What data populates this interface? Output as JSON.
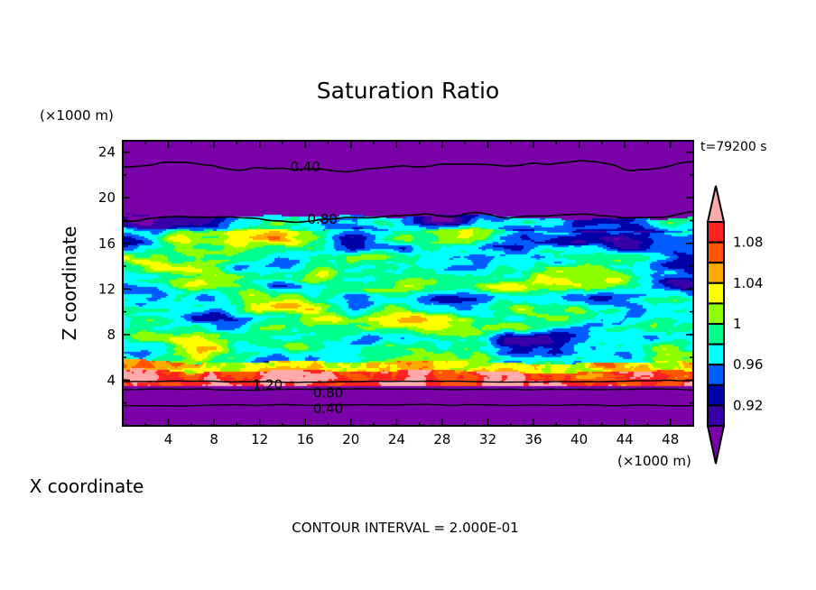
{
  "chart_data": {
    "type": "heatmap",
    "title": "Saturation Ratio",
    "xlabel": "X coordinate",
    "ylabel": "Z coordinate",
    "x_unit": "(×1000 m)",
    "y_unit": "(×1000 m)",
    "xlim": [
      0,
      50
    ],
    "ylim": [
      0,
      25
    ],
    "x_ticks": [
      4,
      8,
      12,
      16,
      20,
      24,
      28,
      32,
      36,
      40,
      44,
      48
    ],
    "y_ticks": [
      4,
      8,
      12,
      16,
      20,
      24
    ],
    "time_label": "t=79200 s",
    "footer": "CONTOUR INTERVAL = 2.000E-01",
    "colorbar": {
      "levels": [
        0.9,
        0.92,
        0.94,
        0.96,
        0.98,
        1.0,
        1.02,
        1.04,
        1.06,
        1.08,
        1.1
      ],
      "tick_labels": [
        "0.92",
        "0.96",
        "1",
        "1.04",
        "1.08"
      ],
      "tick_values": [
        0.92,
        0.96,
        1.0,
        1.04,
        1.08
      ],
      "colors": [
        "#7a00a8",
        "#3a00a8",
        "#0000a8",
        "#005cff",
        "#00ffff",
        "#00ff8c",
        "#8cff00",
        "#ffff00",
        "#ffaa00",
        "#ff5500",
        "#ff2020",
        "#ffaaaa"
      ]
    },
    "contours": [
      {
        "label": "0.40",
        "z_approx": 22.7
      },
      {
        "label": "0.80",
        "z_approx": 18.3
      },
      {
        "label": "1.20",
        "z_approx": 3.9
      },
      {
        "label": "0.80",
        "z_approx": 3.2
      },
      {
        "label": "0.40",
        "z_approx": 1.8
      }
    ]
  }
}
